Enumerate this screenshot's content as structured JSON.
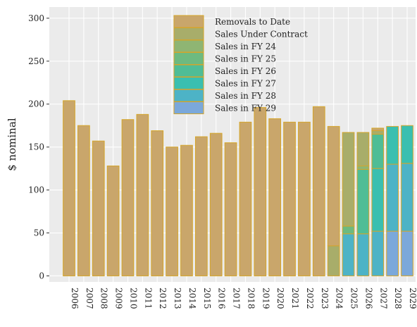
{
  "chart_data": {
    "type": "stacked_bar",
    "ylabel": "$ nominal",
    "categories": [
      "2006",
      "2007",
      "2008",
      "2009",
      "2010",
      "2011",
      "2012",
      "2013",
      "2014",
      "2015",
      "2016",
      "2017",
      "2018",
      "2019",
      "2020",
      "2021",
      "2022",
      "2023",
      "2024",
      "2025",
      "2026",
      "2027",
      "2028",
      "2029"
    ],
    "series": [
      {
        "name": "Removals to Date",
        "color": "#c9a66b",
        "values": [
          204,
          175,
          157,
          128,
          182,
          188,
          169,
          150,
          152,
          162,
          166,
          155,
          179,
          196,
          183,
          179,
          179,
          197,
          139,
          null,
          null,
          3,
          null,
          null
        ]
      },
      {
        "name": "Sales Under Contract",
        "color": "#a8ad6a",
        "values": [
          null,
          null,
          null,
          null,
          null,
          null,
          null,
          null,
          null,
          null,
          null,
          null,
          null,
          null,
          null,
          null,
          null,
          null,
          35,
          109,
          39,
          4,
          null,
          null
        ]
      },
      {
        "name": "Sales in FY 24",
        "color": "#8fb573",
        "values": [
          null,
          null,
          null,
          null,
          null,
          null,
          null,
          null,
          null,
          null,
          null,
          null,
          null,
          null,
          null,
          null,
          null,
          null,
          null,
          null,
          4,
          null,
          null,
          null
        ]
      },
      {
        "name": "Sales in FY 25",
        "color": "#6dba80",
        "values": [
          null,
          null,
          null,
          null,
          null,
          null,
          null,
          null,
          null,
          null,
          null,
          null,
          null,
          null,
          null,
          null,
          null,
          null,
          null,
          9,
          null,
          null,
          null,
          null
        ]
      },
      {
        "name": "Sales in FY 26",
        "color": "#4fbd96",
        "values": [
          null,
          null,
          null,
          null,
          null,
          null,
          null,
          null,
          null,
          null,
          null,
          null,
          null,
          null,
          null,
          null,
          null,
          null,
          null,
          null,
          75,
          40,
          null,
          null
        ]
      },
      {
        "name": "Sales in FY 27",
        "color": "#3abfb0",
        "values": [
          null,
          null,
          null,
          null,
          null,
          null,
          null,
          null,
          null,
          null,
          null,
          null,
          null,
          null,
          null,
          null,
          null,
          null,
          null,
          null,
          null,
          73,
          44,
          44
        ]
      },
      {
        "name": "Sales in FY 28",
        "color": "#4db3c6",
        "values": [
          null,
          null,
          null,
          null,
          null,
          null,
          null,
          null,
          null,
          null,
          null,
          null,
          null,
          null,
          null,
          null,
          null,
          null,
          null,
          49,
          49,
          52,
          78,
          79
        ]
      },
      {
        "name": "Sales in FY 29",
        "color": "#7ba8da",
        "values": [
          null,
          null,
          null,
          null,
          null,
          null,
          null,
          null,
          null,
          null,
          null,
          null,
          null,
          null,
          null,
          null,
          null,
          null,
          null,
          null,
          null,
          null,
          52,
          52
        ]
      }
    ],
    "ylim": [
      -7,
      313
    ],
    "yticks": [
      0,
      50,
      100,
      150,
      200,
      250,
      300
    ],
    "grid": true,
    "legend": "top"
  }
}
